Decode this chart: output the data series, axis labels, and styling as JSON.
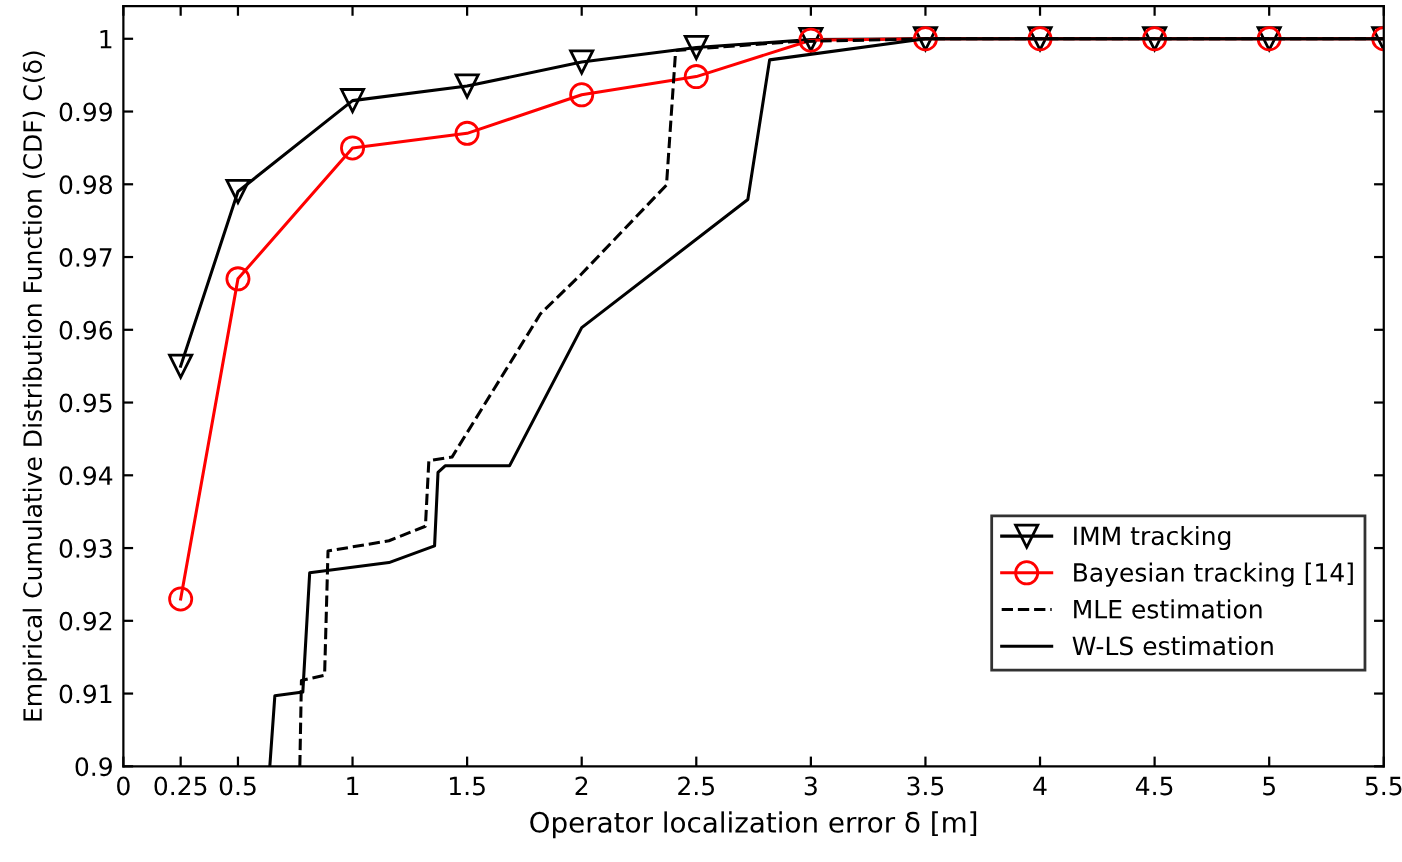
{
  "chart_data": {
    "type": "line",
    "xlabel": "Operator localization error δ [m]",
    "ylabel": "Empirical Cumulative Distribution Function (CDF) C(δ)",
    "xlim": [
      0,
      5.5
    ],
    "xticks": [
      0,
      0.25,
      0.5,
      1,
      1.5,
      2,
      2.5,
      3,
      3.5,
      4,
      4.5,
      5,
      5.5
    ],
    "ylim": [
      0.9,
      1.0045
    ],
    "yticks": [
      0.9,
      0.91,
      0.92,
      0.93,
      0.94,
      0.95,
      0.96,
      0.97,
      0.98,
      0.99,
      1
    ],
    "grid": false,
    "legend": "bottom right",
    "series": [
      {
        "name": "IMM tracking",
        "color": "#000000",
        "marker": "triangle",
        "line_style": "solid",
        "x": [
          0.25,
          0.5,
          1,
          1.5,
          2,
          2.5,
          3,
          3.5,
          4,
          4.5,
          5,
          5.5
        ],
        "values": [
          0.955,
          0.979,
          0.9915,
          0.9935,
          0.9968,
          0.9988,
          0.9999,
          1,
          1,
          1,
          1,
          1
        ]
      },
      {
        "name": "Bayesian tracking [14]",
        "color": "#ff0000",
        "marker": "circle",
        "line_style": "solid",
        "x": [
          0.25,
          0.5,
          1,
          1.5,
          2,
          2.5,
          3,
          3.5,
          4,
          4.5,
          5,
          5.5
        ],
        "values": [
          0.923,
          0.967,
          0.985,
          0.987,
          0.9923,
          0.9948,
          0.9998,
          1,
          1,
          1,
          1,
          1
        ]
      },
      {
        "name": "MLE estimation",
        "color": "#000000",
        "marker": "none",
        "line_style": "dashed",
        "x": [
          0.77,
          0.777,
          0.878,
          0.893,
          1.159,
          1.318,
          1.333,
          1.434,
          1.82,
          2.0,
          2.37,
          2.41,
          2.92,
          3.5,
          5.5
        ],
        "values": [
          0.9,
          0.9118,
          0.9125,
          0.9296,
          0.931,
          0.933,
          0.942,
          0.9425,
          0.9622,
          0.9677,
          0.9799,
          0.9984,
          0.9996,
          1,
          1
        ]
      },
      {
        "name": "W-LS estimation",
        "color": "#000000",
        "marker": "none",
        "line_style": "solid",
        "x": [
          0.639,
          0.661,
          0.783,
          0.813,
          1.159,
          1.358,
          1.373,
          1.404,
          1.685,
          2.0,
          2.725,
          2.82,
          3.5,
          5.5
        ],
        "values": [
          0.9,
          0.9097,
          0.9102,
          0.9266,
          0.928,
          0.9303,
          0.9404,
          0.9413,
          0.9413,
          0.9603,
          0.9779,
          0.9971,
          1,
          1
        ]
      }
    ]
  }
}
